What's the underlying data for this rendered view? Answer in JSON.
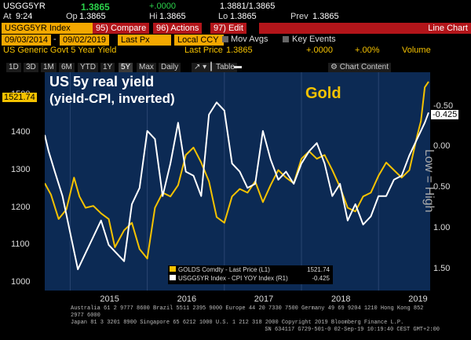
{
  "header": {
    "ticker": "USGG5YR",
    "last": "1.3865",
    "change": "+.0000",
    "bidask": "1.3881/1.3865",
    "time_label": "At",
    "time": "9:24",
    "op_label": "Op",
    "op": "1.3865",
    "hi_label": "Hi",
    "hi": "1.3865",
    "lo_label": "Lo",
    "lo": "1.3865",
    "prev_label": "Prev",
    "prev": "1.3865"
  },
  "toolbar": {
    "index_label": "USGG5YR Index",
    "compare": "95) Compare",
    "actions": "96) Actions",
    "edit": "97) Edit",
    "chart_type": "Line Chart"
  },
  "settings": {
    "start_date": "09/03/2014",
    "end_date": "09/02/2019",
    "price_field": "Last Px",
    "currency": "Local CCY",
    "mov_avgs": "Mov Avgs",
    "key_events": "Key Events"
  },
  "security": {
    "name": "US Generic Govt 5 Year Yield",
    "last_price_label": "Last Price",
    "last_price": "1.3865",
    "chg": "+.0000",
    "pct": "+.00%",
    "volume_label": "Volume"
  },
  "tabs": [
    "1D",
    "3D",
    "1M",
    "6M",
    "YTD",
    "1Y",
    "5Y",
    "Max"
  ],
  "selected_tab": "5Y",
  "period": "Daily",
  "table_label": "Table",
  "chart_content_label": "Chart Content",
  "chart_data": {
    "type": "line",
    "annotation_title": "US 5y real yield",
    "annotation_sub": "(yield-CPI, inverted)",
    "gold_label": "Gold",
    "right_axis_title": "Low = High",
    "left_ylim": [
      980,
      1560
    ],
    "right_ylim": [
      1.76,
      -0.92
    ],
    "left_ticks": [
      1000,
      1100,
      1200,
      1300,
      1400,
      1500
    ],
    "right_ticks": [
      "1.50",
      "1.00",
      "0.50",
      "0.00",
      "-0.50"
    ],
    "right_tick_values": [
      1.5,
      1.0,
      0.5,
      0.0,
      -0.5
    ],
    "x_labels": [
      "2015",
      "2016",
      "2017",
      "2018",
      "2019"
    ],
    "x_label_positions": [
      2015.0,
      2016.0,
      2017.0,
      2018.0,
      2019.0
    ],
    "xlim": [
      2014.67,
      2019.67
    ],
    "last_left": "1521.74",
    "last_right": "-0.425",
    "series": [
      {
        "name": "GOLDS Comdty - Last Price (L1)",
        "last": "1521.74",
        "color": "#f5c200",
        "x": [
          2014.67,
          2014.75,
          2014.85,
          2014.95,
          2015.05,
          2015.12,
          2015.2,
          2015.3,
          2015.4,
          2015.5,
          2015.58,
          2015.7,
          2015.8,
          2015.9,
          2016.0,
          2016.1,
          2016.2,
          2016.3,
          2016.4,
          2016.5,
          2016.6,
          2016.7,
          2016.8,
          2016.9,
          2017.0,
          2017.1,
          2017.2,
          2017.3,
          2017.4,
          2017.5,
          2017.6,
          2017.7,
          2017.8,
          2017.9,
          2018.0,
          2018.1,
          2018.2,
          2018.3,
          2018.4,
          2018.5,
          2018.6,
          2018.7,
          2018.8,
          2018.9,
          2019.0,
          2019.1,
          2019.2,
          2019.3,
          2019.4,
          2019.5,
          2019.55,
          2019.6,
          2019.65
        ],
        "values": [
          1265,
          1235,
          1170,
          1195,
          1280,
          1230,
          1200,
          1205,
          1185,
          1170,
          1095,
          1140,
          1160,
          1090,
          1065,
          1200,
          1240,
          1230,
          1260,
          1340,
          1360,
          1320,
          1270,
          1175,
          1160,
          1230,
          1250,
          1240,
          1270,
          1215,
          1260,
          1300,
          1280,
          1265,
          1330,
          1350,
          1330,
          1340,
          1300,
          1255,
          1200,
          1190,
          1230,
          1240,
          1285,
          1320,
          1300,
          1280,
          1300,
          1390,
          1430,
          1520,
          1535
        ]
      },
      {
        "name": "USGG5YR Index - CPI YOY Index (R1)",
        "last": "-0.425",
        "color": "#ffffff",
        "x": [
          2014.67,
          2014.72,
          2014.8,
          2014.9,
          2015.0,
          2015.1,
          2015.2,
          2015.3,
          2015.4,
          2015.5,
          2015.6,
          2015.7,
          2015.8,
          2015.9,
          2016.0,
          2016.1,
          2016.2,
          2016.3,
          2016.4,
          2016.5,
          2016.6,
          2016.7,
          2016.8,
          2016.9,
          2017.0,
          2017.1,
          2017.2,
          2017.3,
          2017.4,
          2017.5,
          2017.6,
          2017.7,
          2017.8,
          2017.9,
          2018.0,
          2018.1,
          2018.2,
          2018.3,
          2018.4,
          2018.5,
          2018.6,
          2018.7,
          2018.8,
          2018.9,
          2019.0,
          2019.1,
          2019.2,
          2019.3,
          2019.4,
          2019.5,
          2019.6,
          2019.65
        ],
        "values": [
          -0.15,
          0.05,
          0.3,
          0.6,
          1.05,
          1.5,
          1.3,
          1.1,
          0.9,
          1.2,
          1.3,
          1.4,
          0.7,
          0.5,
          -0.2,
          -0.1,
          0.6,
          0.2,
          -0.3,
          0.3,
          0.35,
          0.6,
          -0.4,
          -0.55,
          -0.45,
          0.2,
          0.3,
          0.5,
          0.45,
          -0.2,
          0.15,
          0.4,
          0.3,
          0.45,
          0.2,
          0.05,
          -0.05,
          0.2,
          0.6,
          0.45,
          0.9,
          0.7,
          0.95,
          0.85,
          0.6,
          0.6,
          0.4,
          0.35,
          0.1,
          -0.1,
          -0.3,
          -0.425
        ]
      }
    ]
  },
  "legend": {
    "gold": "GOLDS Comdty - Last Price (L1)",
    "gold_last": "1521.74",
    "yield": "USGG5YR Index - CPI YOY Index (R1)",
    "yield_last": "-0.425"
  },
  "footer": {
    "line1": "Australia 61 2 9777 8600 Brazil 5511 2395 9000 Europe 44 20 7330 7500 Germany 49 69 9204 1210 Hong Kong 852 2977 6000",
    "line2": "Japan 81 3 3201 8900        Singapore 65 6212 1000        U.S. 1 212 318 2000        Copyright 2019 Bloomberg Finance L.P.",
    "line3": "SN 634117 G729-501-0 02-Sep-19 10:19:40 CEST GMT+2:00"
  },
  "colors": {
    "gold": "#f5c200",
    "chart_bg": "#0c2a54",
    "accent_red": "#b3151a",
    "accent_orange": "#f3a800"
  }
}
